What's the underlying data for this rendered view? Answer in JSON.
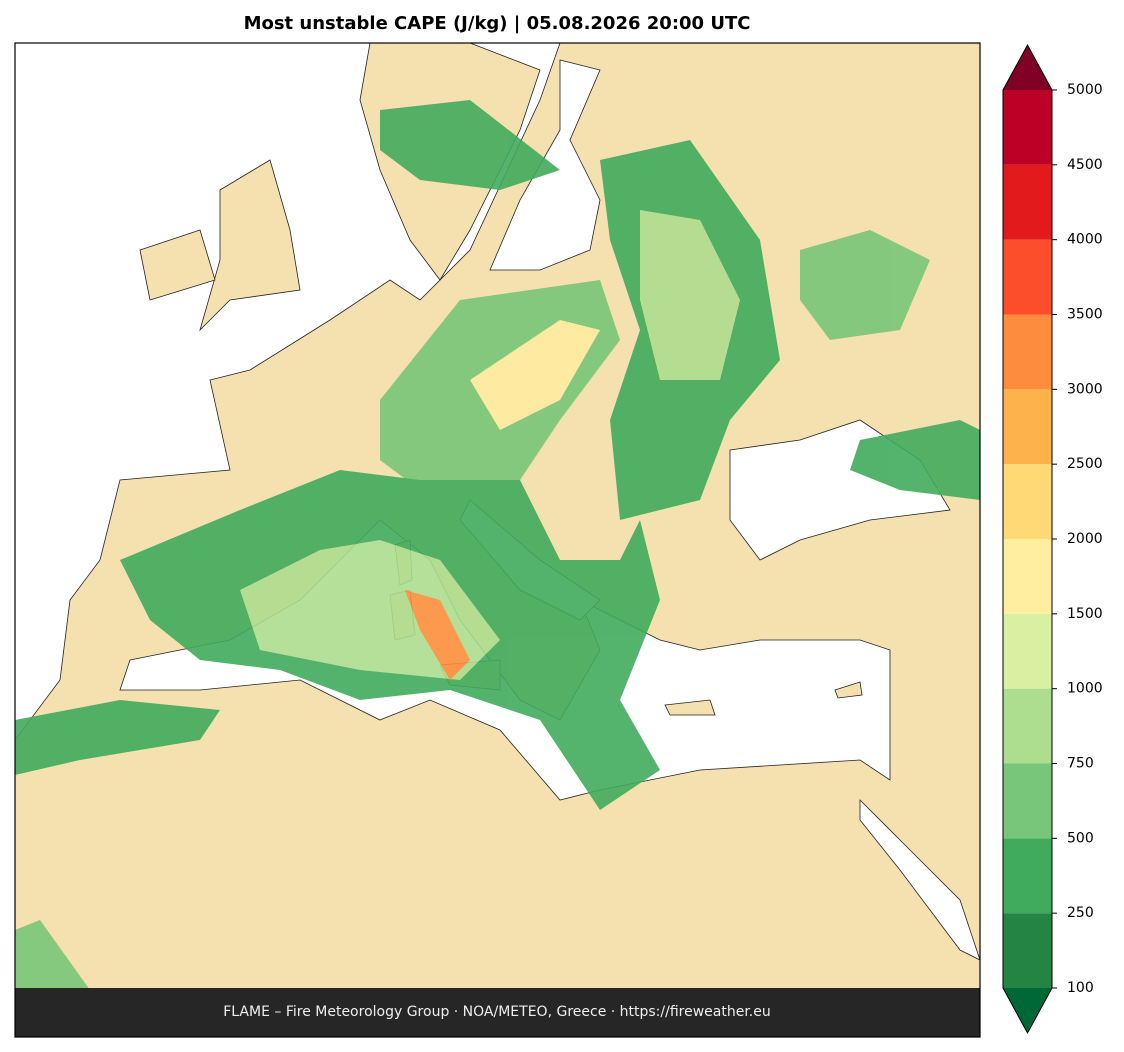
{
  "title": "Most unstable CAPE (J/kg)  |  05.08.2026 20:00 UTC",
  "footer": "FLAME – Fire Meteorology Group · NOA/METEO, Greece · https://fireweather.eu",
  "colorbar": {
    "levels": [
      100,
      250,
      500,
      750,
      1000,
      1500,
      2000,
      2500,
      3000,
      3500,
      4000,
      4500,
      5000
    ],
    "colors": [
      "#238443",
      "#41ab5d",
      "#78c679",
      "#addd8e",
      "#d9f0a3",
      "#ffeda0",
      "#fed976",
      "#feb24c",
      "#fd8d3c",
      "#fc4e2a",
      "#e31a1c",
      "#bd0026"
    ],
    "under_color": "#006837",
    "over_color": "#800026"
  }
}
